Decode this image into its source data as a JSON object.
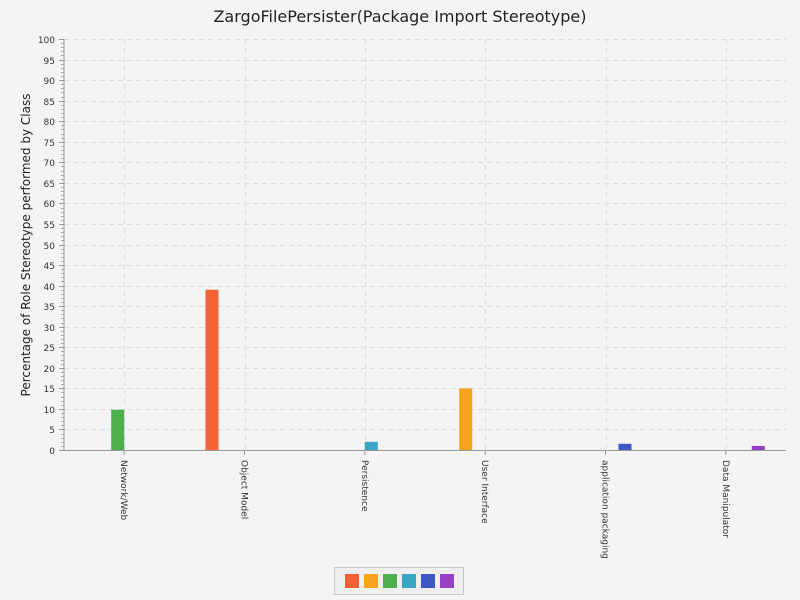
{
  "chart_data": {
    "type": "bar",
    "title": "ZargoFilePersister(Package Import Stereotype)",
    "ylabel": "Percentage of Role Stereotype performed by Class",
    "xlabel": "",
    "ylim": [
      0,
      100
    ],
    "ytick_step": 5,
    "grid": true,
    "legend_position": "bottom",
    "categories": [
      "Network/Web",
      "Object Model",
      "Persistence",
      "User Interface",
      "application packaging",
      "Data Manipulator"
    ],
    "series": [
      {
        "color": "#f26234",
        "values": [
          0,
          39,
          0,
          0,
          0,
          0
        ]
      },
      {
        "color": "#f7a31e",
        "values": [
          0,
          0,
          0,
          15,
          0,
          0
        ]
      },
      {
        "color": "#4cae4c",
        "values": [
          9.8,
          0,
          0,
          0,
          0,
          0
        ]
      },
      {
        "color": "#3ba5c6",
        "values": [
          0,
          0,
          2,
          0,
          0,
          0
        ]
      },
      {
        "color": "#3e55c4",
        "values": [
          0,
          0,
          0,
          0,
          1.5,
          0
        ]
      },
      {
        "color": "#9740c6",
        "values": [
          0,
          0,
          0,
          0,
          0,
          1
        ]
      }
    ]
  }
}
